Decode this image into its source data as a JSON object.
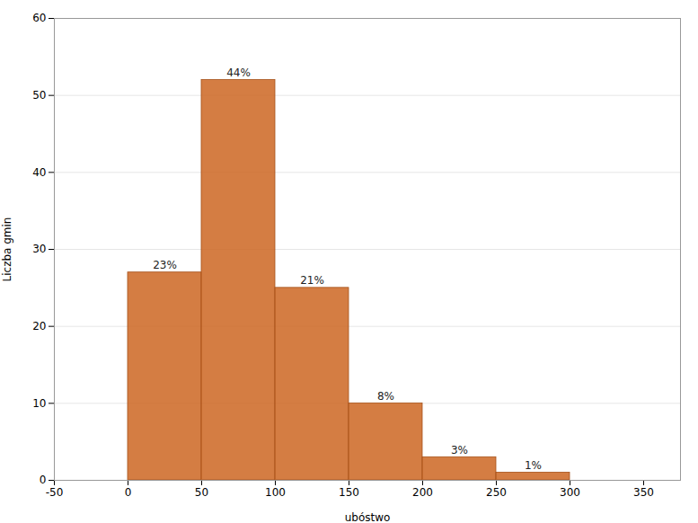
{
  "chart_data": {
    "type": "histogram",
    "bins": [
      0,
      50,
      100,
      150,
      200,
      250,
      300
    ],
    "values": [
      27,
      52,
      25,
      10,
      3,
      1
    ],
    "value_labels": [
      "23%",
      "44%",
      "21%",
      "8%",
      "3%",
      "1%"
    ],
    "data_labels": true,
    "color": "#cc6622",
    "xlabel": "ubóstwo",
    "ylabel": "Liczba gmin",
    "xlim": [
      -50,
      375
    ],
    "xticks": [
      -50,
      0,
      50,
      100,
      150,
      200,
      250,
      300,
      350
    ],
    "ylim": [
      0,
      60
    ],
    "yticks": [
      0,
      10,
      20,
      30,
      40,
      50,
      60
    ],
    "grid": true
  }
}
